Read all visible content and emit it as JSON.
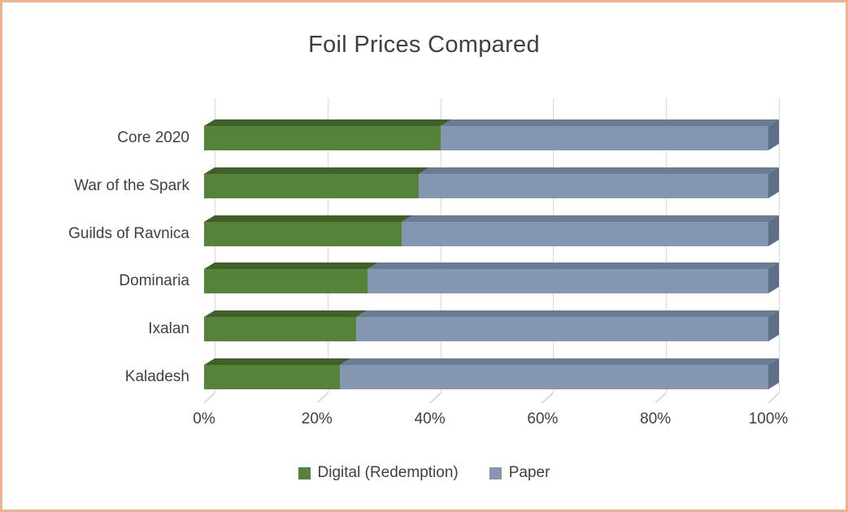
{
  "frame": {
    "border_color": "#f0b28c",
    "background_color": "#ffffff",
    "text_color": "#404040"
  },
  "title": "Foil Prices Compared",
  "chart_data": {
    "type": "bar",
    "subtype": "horizontal-100pct-stacked-3d",
    "title": "Foil Prices Compared",
    "categories": [
      "Core 2020",
      "War of the Spark",
      "Guilds of Ravnica",
      "Dominaria",
      "Ixalan",
      "Kaladesh"
    ],
    "series": [
      {
        "name": "Digital (Redemption)",
        "color": "#56823a",
        "top_shade_color": "#3f6128",
        "values": [
          42,
          38,
          35,
          29,
          27,
          24
        ]
      },
      {
        "name": "Paper",
        "color": "#8496b0",
        "top_shade_color": "#6a7b94",
        "end_cap_color": "#5d6e87",
        "values": [
          58,
          62,
          65,
          71,
          73,
          76
        ]
      }
    ],
    "x_axis": {
      "tick_labels": [
        "0%",
        "20%",
        "40%",
        "60%",
        "80%",
        "100%"
      ],
      "min": 0,
      "max": 100,
      "unit": "%",
      "grid": true
    },
    "gridline_color": "#d9d9d9",
    "tick_color": "#bfbfbf",
    "legend_position": "bottom"
  }
}
